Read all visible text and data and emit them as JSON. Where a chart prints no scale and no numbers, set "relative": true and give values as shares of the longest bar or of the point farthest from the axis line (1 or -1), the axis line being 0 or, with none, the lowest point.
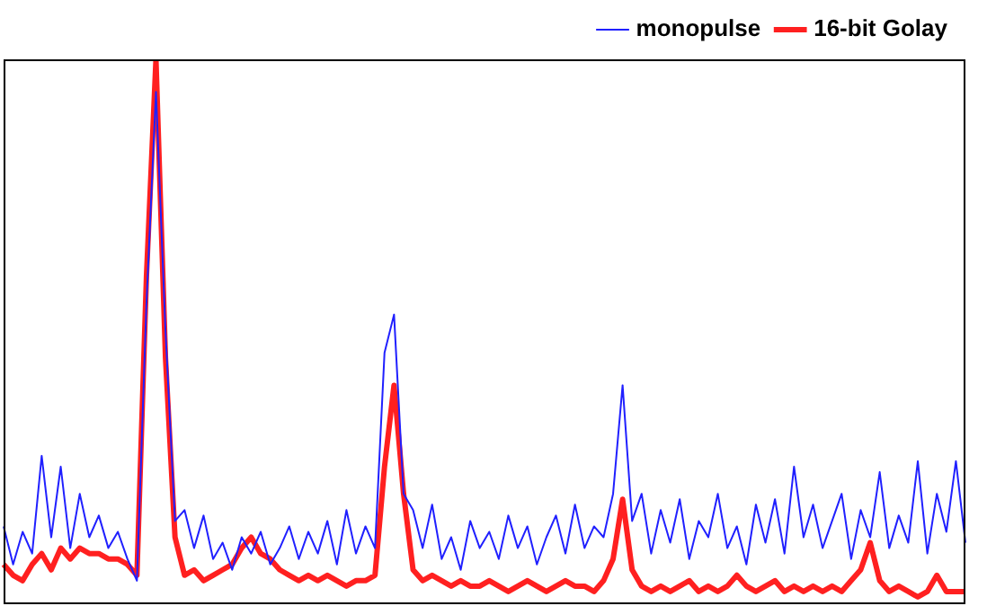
{
  "chart_data": {
    "type": "line",
    "relative": true,
    "legend": "top right",
    "marker": "none",
    "line_style": "solid",
    "categories": [
      null,
      null,
      null,
      null,
      null,
      null,
      null,
      null,
      null,
      null,
      null,
      null,
      null,
      null,
      null,
      null,
      null,
      null,
      null,
      null,
      null,
      null,
      null,
      null,
      null,
      null,
      null,
      null,
      null,
      null,
      null,
      null,
      null,
      null,
      null,
      null,
      null,
      null,
      null,
      null,
      null,
      null,
      null,
      null,
      null,
      null,
      null,
      null,
      null,
      null,
      null,
      null,
      null,
      null,
      null,
      null,
      null,
      null,
      null,
      null,
      null,
      null,
      null,
      null,
      null,
      null,
      null,
      null,
      null,
      null,
      null,
      null,
      null,
      null,
      null,
      null,
      null,
      null,
      null,
      null,
      null,
      null,
      null,
      null,
      null,
      null,
      null,
      null,
      null,
      null,
      null,
      null,
      null,
      null,
      null,
      null,
      null,
      null,
      null,
      null,
      null,
      null
    ],
    "series": [
      {
        "name": "16-bit Golay",
        "color": "#ff2020",
        "values": [
          0.07,
          0.05,
          0.04,
          0.07,
          0.09,
          0.06,
          0.1,
          0.08,
          0.1,
          0.09,
          0.09,
          0.08,
          0.08,
          0.07,
          0.05,
          0.6,
          1,
          0.45,
          0.12,
          0.05,
          0.06,
          0.04,
          0.05,
          0.06,
          0.07,
          0.1,
          0.12,
          0.09,
          0.08,
          0.06,
          0.05,
          0.04,
          0.05,
          0.04,
          0.05,
          0.04,
          0.03,
          0.04,
          0.04,
          0.05,
          0.25,
          0.4,
          0.2,
          0.06,
          0.04,
          0.05,
          0.04,
          0.03,
          0.04,
          0.03,
          0.03,
          0.04,
          0.03,
          0.02,
          0.03,
          0.04,
          0.03,
          0.02,
          0.03,
          0.04,
          0.03,
          0.03,
          0.02,
          0.04,
          0.08,
          0.19,
          0.06,
          0.03,
          0.02,
          0.03,
          0.02,
          0.03,
          0.04,
          0.02,
          0.03,
          0.02,
          0.03,
          0.05,
          0.03,
          0.02,
          0.03,
          0.04,
          0.02,
          0.03,
          0.02,
          0.03,
          0.02,
          0.03,
          0.02,
          0.04,
          0.06,
          0.11,
          0.04,
          0.02,
          0.03,
          0.02,
          0.01,
          0.02,
          0.05,
          0.02,
          0.02,
          0.02
        ]
      },
      {
        "name": "monopulse",
        "color": "#2020ff",
        "values": [
          0.14,
          0.07,
          0.13,
          0.09,
          0.27,
          0.12,
          0.25,
          0.1,
          0.2,
          0.12,
          0.16,
          0.1,
          0.13,
          0.08,
          0.04,
          0.55,
          0.94,
          0.5,
          0.15,
          0.17,
          0.1,
          0.16,
          0.08,
          0.11,
          0.06,
          0.12,
          0.09,
          0.13,
          0.07,
          0.1,
          0.14,
          0.08,
          0.13,
          0.09,
          0.15,
          0.07,
          0.17,
          0.09,
          0.14,
          0.1,
          0.46,
          0.53,
          0.2,
          0.17,
          0.1,
          0.18,
          0.08,
          0.12,
          0.06,
          0.15,
          0.1,
          0.13,
          0.08,
          0.16,
          0.1,
          0.14,
          0.07,
          0.12,
          0.16,
          0.09,
          0.18,
          0.1,
          0.14,
          0.12,
          0.2,
          0.4,
          0.15,
          0.2,
          0.09,
          0.17,
          0.11,
          0.19,
          0.08,
          0.15,
          0.12,
          0.2,
          0.1,
          0.14,
          0.07,
          0.18,
          0.11,
          0.19,
          0.09,
          0.25,
          0.12,
          0.18,
          0.1,
          0.15,
          0.2,
          0.08,
          0.17,
          0.12,
          0.24,
          0.1,
          0.16,
          0.11,
          0.26,
          0.09,
          0.2,
          0.13,
          0.26,
          0.11
        ]
      }
    ]
  }
}
